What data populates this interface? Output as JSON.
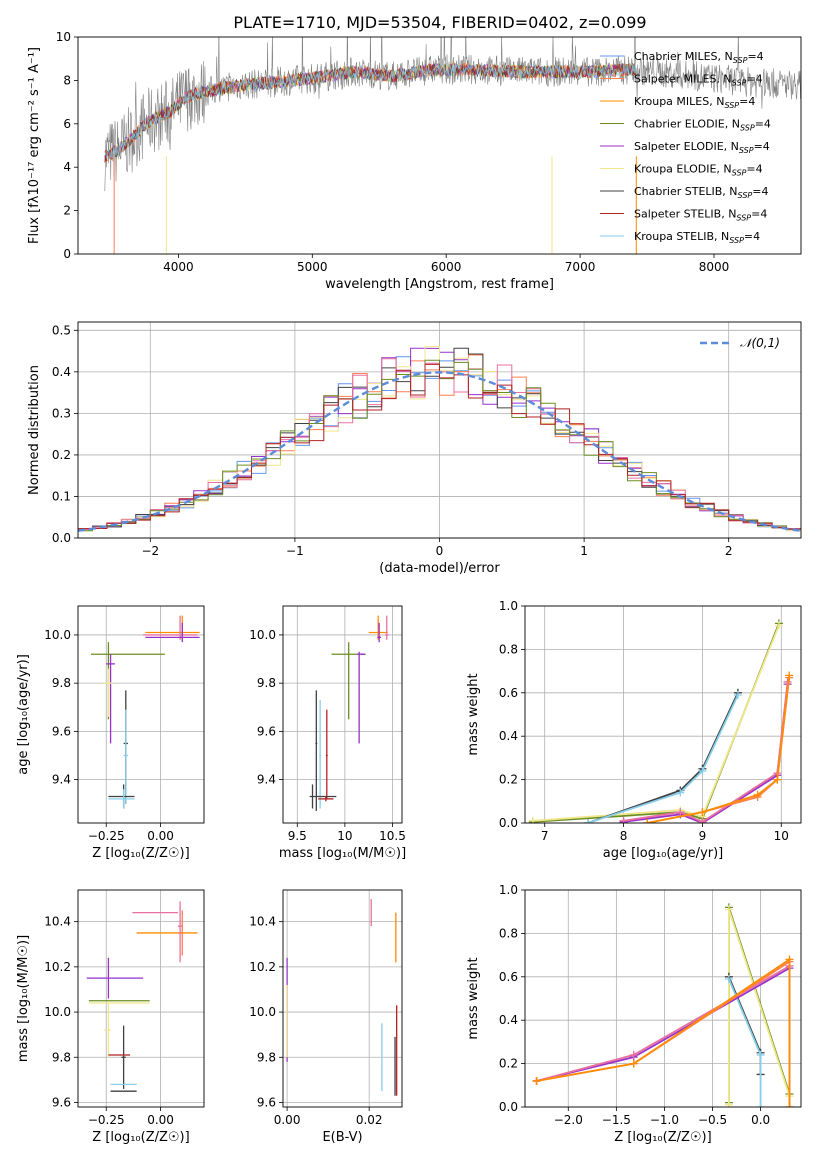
{
  "figure": {
    "title": "PLATE=1710, MJD=53504, FIBERID=0402, z=0.099"
  },
  "models": [
    {
      "name": "Chabrier MILES",
      "color": "#6495ed"
    },
    {
      "name": "Salpeter MILES",
      "color": "#ff7f50"
    },
    {
      "name": "Kroupa MILES",
      "color": "#ff8c00"
    },
    {
      "name": "Chabrier ELODIE",
      "color": "#6b8e23"
    },
    {
      "name": "Salpeter ELODIE",
      "color": "#9932cc"
    },
    {
      "name": "Kroupa ELODIE",
      "color": "#f0e68c"
    },
    {
      "name": "Chabrier STELIB",
      "color": "#404040"
    },
    {
      "name": "Salpeter STELIB",
      "color": "#b22222"
    },
    {
      "name": "Kroupa STELIB",
      "color": "#87ceeb"
    }
  ],
  "legend_suffix": "N",
  "legend_sub": "SSP",
  "legend_tail": "=4",
  "chart_data": [
    {
      "id": "spectrum",
      "type": "line",
      "xlabel": "wavelength [Angstrom, rest frame]",
      "ylabel": "Flux [fλ10⁻¹⁷ erg cm⁻² s⁻¹ A⁻¹]",
      "xlim": [
        3250,
        8650
      ],
      "ylim": [
        0,
        10
      ],
      "xticks": [
        4000,
        5000,
        6000,
        7000,
        8000
      ],
      "yticks": [
        0,
        2,
        4,
        6,
        8,
        10
      ],
      "grid": false,
      "legend": "top-right",
      "data_color": "#808080",
      "data_envelope": [
        [
          3450,
          4.5
        ],
        [
          3550,
          4.8
        ],
        [
          3650,
          5.3
        ],
        [
          3750,
          6.0
        ],
        [
          3850,
          6.3
        ],
        [
          3950,
          6.6
        ],
        [
          4050,
          7.2
        ],
        [
          4150,
          7.4
        ],
        [
          4300,
          7.6
        ],
        [
          4500,
          7.8
        ],
        [
          4700,
          7.9
        ],
        [
          5000,
          8.1
        ],
        [
          5300,
          8.4
        ],
        [
          5600,
          8.2
        ],
        [
          5900,
          8.5
        ],
        [
          6200,
          8.5
        ],
        [
          6500,
          8.4
        ],
        [
          6800,
          8.4
        ],
        [
          7100,
          8.4
        ],
        [
          7400,
          8.5
        ],
        [
          7700,
          8.3
        ],
        [
          8000,
          8.1
        ],
        [
          8300,
          7.9
        ],
        [
          8650,
          7.8
        ]
      ],
      "data_range": [
        3450,
        8650
      ],
      "model_range": [
        3450,
        7420
      ]
    },
    {
      "id": "residuals",
      "type": "histogram",
      "xlabel": "(data-model)/error",
      "ylabel": "Normed distribution",
      "xlim": [
        -2.5,
        2.5
      ],
      "ylim": [
        0,
        0.52
      ],
      "xticks": [
        -2,
        -1,
        0,
        1,
        2
      ],
      "yticks": [
        0.0,
        0.1,
        0.2,
        0.3,
        0.4,
        0.5
      ],
      "grid": true,
      "legend": "top-right",
      "reference_curve": {
        "name": "𝒩(0,1)",
        "type": "normal",
        "mean": 0,
        "sigma": 1,
        "color": "#5b8bd9"
      },
      "bin_width": 0.1,
      "hist_colors": [
        "#6495ed",
        "#ff7f50",
        "#9932cc",
        "#f0e68c",
        "#404040",
        "#e870a0",
        "#6b8e23",
        "#b22222"
      ]
    },
    {
      "id": "age_vs_Z",
      "type": "errorbar",
      "xlabel": "Z [log₁₀(Z/Z☉)]",
      "ylabel": "age  [log₁₀(age/yr)]",
      "xlim": [
        -0.38,
        0.2
      ],
      "ylim": [
        9.22,
        10.12
      ],
      "xticks": [
        -0.25,
        0.0
      ],
      "xtick_labels": [
        "−0.25",
        "0.00"
      ],
      "yticks": [
        9.4,
        9.6,
        9.8,
        10.0
      ],
      "grid": true,
      "points": [
        {
          "x": 0.1,
          "xerr": [
            0.17,
            0.08
          ],
          "y": 10.01,
          "yerr": [
            0.03,
            0.07
          ],
          "color": "#ff8c00"
        },
        {
          "x": 0.09,
          "xerr": [
            0.17,
            0.08
          ],
          "y": 10.0,
          "yerr": [
            0.02,
            0.08
          ],
          "color": "#e870a0"
        },
        {
          "x": 0.1,
          "xerr": [
            0.17,
            0.08
          ],
          "y": 9.99,
          "yerr": [
            0.02,
            0.06
          ],
          "color": "#9932cc"
        },
        {
          "x": -0.24,
          "xerr": [
            0.08,
            0.26
          ],
          "y": 9.92,
          "yerr": [
            0.27,
            0.05
          ],
          "color": "#6b8e23"
        },
        {
          "x": -0.23,
          "xerr": [
            0.02,
            0.02
          ],
          "y": 9.88,
          "yerr": [
            0.33,
            0.04
          ],
          "color": "#9932cc"
        },
        {
          "x": -0.24,
          "xerr": [
            0.02,
            0.02
          ],
          "y": 9.8,
          "yerr": [
            0.14,
            0.06
          ],
          "color": "#f0e68c"
        },
        {
          "x": -0.16,
          "xerr": [
            0.01,
            0.01
          ],
          "y": 9.55,
          "yerr": [
            0.25,
            0.22
          ],
          "color": "#404040"
        },
        {
          "x": -0.16,
          "xerr": [
            0.01,
            0.01
          ],
          "y": 9.5,
          "yerr": [
            0.2,
            0.19
          ],
          "color": "#87ceeb"
        },
        {
          "x": -0.17,
          "xerr": [
            0.07,
            0.05
          ],
          "y": 9.33,
          "yerr": [
            0.05,
            0.05
          ],
          "color": "#404040"
        },
        {
          "x": -0.17,
          "xerr": [
            0.07,
            0.05
          ],
          "y": 9.32,
          "yerr": [
            0.04,
            0.04
          ],
          "color": "#87ceeb"
        }
      ]
    },
    {
      "id": "age_vs_mass",
      "type": "errorbar",
      "xlabel": "mass [log₁₀(M/M☉)]",
      "ylabel": "",
      "xlim": [
        9.35,
        10.6
      ],
      "ylim": [
        9.22,
        10.12
      ],
      "xticks": [
        9.5,
        10.0,
        10.5
      ],
      "yticks": [
        9.4,
        9.6,
        9.8,
        10.0
      ],
      "grid": true,
      "points": [
        {
          "x": 10.35,
          "xerr": [
            0.1,
            0.1
          ],
          "y": 10.01,
          "yerr": [
            0.03,
            0.07
          ],
          "color": "#ff8c00"
        },
        {
          "x": 10.44,
          "xerr": [
            0.02,
            0.02
          ],
          "y": 10.0,
          "yerr": [
            0.02,
            0.08
          ],
          "color": "#e870a0"
        },
        {
          "x": 10.36,
          "xerr": [
            0.02,
            0.02
          ],
          "y": 9.99,
          "yerr": [
            0.02,
            0.06
          ],
          "color": "#9932cc"
        },
        {
          "x": 10.04,
          "xerr": [
            0.18,
            0.18
          ],
          "y": 9.92,
          "yerr": [
            0.27,
            0.05
          ],
          "color": "#6b8e23"
        },
        {
          "x": 10.15,
          "xerr": [
            0.02,
            0.06
          ],
          "y": 9.92,
          "yerr": [
            0.37,
            0.01
          ],
          "color": "#9932cc"
        },
        {
          "x": 9.7,
          "xerr": [
            0.01,
            0.01
          ],
          "y": 9.55,
          "yerr": [
            0.28,
            0.22
          ],
          "color": "#404040"
        },
        {
          "x": 9.74,
          "xerr": [
            0.01,
            0.01
          ],
          "y": 9.5,
          "yerr": [
            0.22,
            0.23
          ],
          "color": "#87ceeb"
        },
        {
          "x": 9.81,
          "xerr": [
            0.01,
            0.01
          ],
          "y": 9.5,
          "yerr": [
            0.18,
            0.19
          ],
          "color": "#b22222"
        },
        {
          "x": 9.66,
          "xerr": [
            0.03,
            0.25
          ],
          "y": 9.33,
          "yerr": [
            0.05,
            0.05
          ],
          "color": "#404040"
        },
        {
          "x": 9.8,
          "xerr": [
            0.08,
            0.08
          ],
          "y": 9.32,
          "yerr": [
            0.01,
            0.01
          ],
          "color": "#b22222"
        }
      ]
    },
    {
      "id": "massweight_vs_age",
      "type": "line",
      "xlabel": "age  [log₁₀(age/yr)]",
      "ylabel": "mass weight",
      "xlim": [
        6.75,
        10.25
      ],
      "ylim": [
        0,
        1
      ],
      "xticks": [
        7,
        8,
        9,
        10
      ],
      "yticks": [
        0.0,
        0.2,
        0.4,
        0.6,
        0.8,
        1.0
      ],
      "grid": true,
      "series": [
        {
          "color": "#6b8e23",
          "x": [
            6.85,
            8.72,
            9.0,
            9.97
          ],
          "y": [
            0.005,
            0.05,
            0.02,
            0.92
          ]
        },
        {
          "color": "#f0e68c",
          "x": [
            6.85,
            8.72,
            9.0,
            9.97
          ],
          "y": [
            0.01,
            0.06,
            0.03,
            0.91
          ]
        },
        {
          "color": "#404040",
          "x": [
            7.55,
            8.72,
            9.0,
            9.45
          ],
          "y": [
            0.0,
            0.15,
            0.25,
            0.6
          ]
        },
        {
          "color": "#87ceeb",
          "x": [
            7.55,
            8.72,
            9.0,
            9.45
          ],
          "y": [
            0.0,
            0.14,
            0.24,
            0.59
          ]
        },
        {
          "color": "#9932cc",
          "x": [
            8.0,
            8.72,
            9.0,
            9.95,
            10.08
          ],
          "y": [
            0.005,
            0.04,
            0.0,
            0.22,
            0.64
          ]
        },
        {
          "color": "#e870a0",
          "x": [
            8.0,
            8.72,
            9.0,
            9.95,
            10.08
          ],
          "y": [
            0.01,
            0.05,
            0.005,
            0.23,
            0.65
          ]
        },
        {
          "color": "#ff7f50",
          "x": [
            8.3,
            9.0,
            9.7,
            9.95,
            10.1
          ],
          "y": [
            0.0,
            0.05,
            0.12,
            0.2,
            0.67
          ]
        },
        {
          "color": "#ff8c00",
          "x": [
            8.3,
            9.0,
            9.7,
            9.95,
            10.1
          ],
          "y": [
            0.0,
            0.05,
            0.13,
            0.2,
            0.68
          ]
        }
      ]
    },
    {
      "id": "mass_vs_Z",
      "type": "errorbar",
      "xlabel": "Z [log₁₀(Z/Z☉)]",
      "ylabel": "mass [log₁₀(M/M☉)]",
      "xlim": [
        -0.38,
        0.2
      ],
      "ylim": [
        9.58,
        10.54
      ],
      "xticks": [
        -0.25,
        0.0
      ],
      "xtick_labels": [
        "−0.25",
        "0.00"
      ],
      "yticks": [
        9.6,
        9.8,
        10.0,
        10.2,
        10.4
      ],
      "grid": true,
      "points": [
        {
          "x": 0.0,
          "xerr": [
            0.13,
            0.08
          ],
          "y": 10.44,
          "yerr": [
            0.0,
            0.0
          ],
          "color": "#e870a0"
        },
        {
          "x": 0.09,
          "xerr": [
            0.01,
            0.01
          ],
          "y": 10.38,
          "yerr": [
            0.16,
            0.11
          ],
          "color": "#e870a0"
        },
        {
          "x": 0.05,
          "xerr": [
            0.16,
            0.12
          ],
          "y": 10.35,
          "yerr": [
            0.0,
            0.0
          ],
          "color": "#ff8c00"
        },
        {
          "x": 0.1,
          "xerr": [
            0.02,
            0.0
          ],
          "y": 10.35,
          "yerr": [
            0.1,
            0.1
          ],
          "color": "#ff7f50"
        },
        {
          "x": -0.24,
          "xerr": [
            0.1,
            0.16
          ],
          "y": 10.15,
          "yerr": [
            0.09,
            0.09
          ],
          "color": "#9932cc"
        },
        {
          "x": -0.22,
          "xerr": [
            0.11,
            0.17
          ],
          "y": 10.05,
          "yerr": [
            0.0,
            0.0
          ],
          "color": "#6b8e23"
        },
        {
          "x": -0.22,
          "xerr": [
            0.11,
            0.17
          ],
          "y": 10.04,
          "yerr": [
            0.0,
            0.0
          ],
          "color": "#f0e68c"
        },
        {
          "x": -0.24,
          "xerr": [
            0.02,
            0.01
          ],
          "y": 9.92,
          "yerr": [
            0.12,
            0.12
          ],
          "color": "#f0e68c"
        },
        {
          "x": -0.17,
          "xerr": [
            0.01,
            0.01
          ],
          "y": 9.8,
          "yerr": [
            0.14,
            0.14
          ],
          "color": "#404040"
        },
        {
          "x": -0.19,
          "xerr": [
            0.05,
            0.05
          ],
          "y": 9.81,
          "yerr": [
            0.0,
            0.0
          ],
          "color": "#b22222"
        },
        {
          "x": -0.17,
          "xerr": [
            0.06,
            0.06
          ],
          "y": 9.68,
          "yerr": [
            0.0,
            0.0
          ],
          "color": "#87ceeb"
        },
        {
          "x": -0.17,
          "xerr": [
            0.06,
            0.06
          ],
          "y": 9.65,
          "yerr": [
            0.0,
            0.0
          ],
          "color": "#404040"
        }
      ]
    },
    {
      "id": "mass_vs_ebv",
      "type": "errorbar",
      "xlabel": "E(B-V)",
      "ylabel": "",
      "xlim": [
        -0.001,
        0.028
      ],
      "ylim": [
        9.58,
        10.54
      ],
      "xticks": [
        0.0,
        0.02
      ],
      "xtick_labels": [
        "0.00",
        "0.02"
      ],
      "yticks": [
        9.6,
        9.8,
        10.0,
        10.2,
        10.4
      ],
      "grid": true,
      "points": [
        {
          "x": 0.0,
          "xerr": [
            0,
            0
          ],
          "y": 10.05,
          "yerr": [
            0.27,
            0.19
          ],
          "color": "#9932cc"
        },
        {
          "x": 0.0,
          "xerr": [
            0,
            0
          ],
          "y": 9.95,
          "yerr": [
            0.15,
            0.17
          ],
          "color": "#f0e68c"
        },
        {
          "x": 0.0205,
          "xerr": [
            0,
            0
          ],
          "y": 10.44,
          "yerr": [
            0.06,
            0.06
          ],
          "color": "#e870a0"
        },
        {
          "x": 0.0265,
          "xerr": [
            0,
            0
          ],
          "y": 10.33,
          "yerr": [
            0.11,
            0.11
          ],
          "color": "#ff8c00"
        },
        {
          "x": 0.0231,
          "xerr": [
            0,
            0
          ],
          "y": 9.8,
          "yerr": [
            0.15,
            0.15
          ],
          "color": "#87ceeb"
        },
        {
          "x": 0.0267,
          "xerr": [
            0,
            0
          ],
          "y": 9.82,
          "yerr": [
            0.19,
            0.21
          ],
          "color": "#b22222"
        },
        {
          "x": 0.0263,
          "xerr": [
            0,
            0
          ],
          "y": 9.76,
          "yerr": [
            0.13,
            0.13
          ],
          "color": "#404040"
        }
      ]
    },
    {
      "id": "massweight_vs_Z",
      "type": "line",
      "xlabel": "Z [log₁₀(Z/Z☉)]",
      "ylabel": "mass weight",
      "xlim": [
        -2.45,
        0.42
      ],
      "ylim": [
        0,
        1
      ],
      "xticks": [
        -2.0,
        -1.5,
        -1.0,
        -0.5,
        0.0
      ],
      "xtick_labels": [
        "−2.0",
        "−1.5",
        "−1.0",
        "−0.5",
        "0.0"
      ],
      "yticks": [
        0.0,
        0.2,
        0.4,
        0.6,
        0.8,
        1.0
      ],
      "grid": true,
      "series": [
        {
          "color": "#6b8e23",
          "x": [
            -0.33,
            -0.33,
            0.3
          ],
          "y": [
            0.02,
            0.92,
            0.06
          ]
        },
        {
          "color": "#f0e68c",
          "x": [
            -0.33,
            -0.33,
            0.3
          ],
          "y": [
            0.01,
            0.91,
            0.05
          ]
        },
        {
          "color": "#404040",
          "x": [
            -0.33,
            0.0,
            0.0
          ],
          "y": [
            0.6,
            0.25,
            0.15
          ]
        },
        {
          "color": "#87ceeb",
          "x": [
            -0.33,
            0.0,
            0.0
          ],
          "y": [
            0.59,
            0.24,
            0.0
          ]
        },
        {
          "color": "#9932cc",
          "x": [
            -2.33,
            -1.32,
            0.3
          ],
          "y": [
            0.12,
            0.23,
            0.64
          ]
        },
        {
          "color": "#e870a0",
          "x": [
            -2.33,
            -1.32,
            0.3
          ],
          "y": [
            0.12,
            0.24,
            0.65
          ]
        },
        {
          "color": "#ff7f50",
          "x": [
            -2.33,
            -1.32,
            0.3,
            0.3
          ],
          "y": [
            0.12,
            0.2,
            0.67,
            0.0
          ]
        },
        {
          "color": "#ff8c00",
          "x": [
            -2.33,
            -1.32,
            0.3,
            0.3
          ],
          "y": [
            0.12,
            0.2,
            0.68,
            0.0
          ]
        }
      ]
    }
  ]
}
